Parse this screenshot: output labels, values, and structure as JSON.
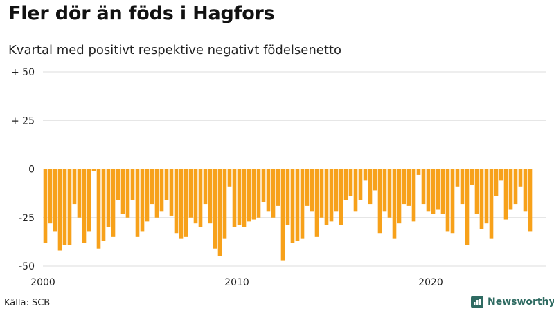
{
  "title": "Fler dör än föds i Hagfors",
  "subtitle": "Kvartal med positivt respektive negativt födelsenetto",
  "source": "Källa: SCB",
  "brand": "Newsworthy",
  "colors": {
    "bar": "#F7A11A",
    "grid": "#DDDDDD",
    "zero_line": "#333333",
    "brand": "#2F6B62"
  },
  "chart_data": {
    "type": "bar",
    "x_start_year": 2000,
    "periods_per_year": 4,
    "x_tick_labels": [
      "2000",
      "2010",
      "2020"
    ],
    "y_ticks": [
      {
        "value": 50,
        "label": "+ 50"
      },
      {
        "value": 25,
        "label": "+ 25"
      },
      {
        "value": 0,
        "label": "0"
      },
      {
        "value": -25,
        "label": "-25"
      },
      {
        "value": -50,
        "label": "-50"
      }
    ],
    "ylim": [
      -50,
      50
    ],
    "values": [
      -38,
      -28,
      -32,
      -42,
      -39,
      -39,
      -18,
      -25,
      -38,
      -32,
      -1,
      -41,
      -37,
      -30,
      -35,
      -16,
      -23,
      -25,
      -16,
      -35,
      -32,
      -27,
      -18,
      -25,
      -22,
      -16,
      -24,
      -33,
      -36,
      -35,
      -25,
      -28,
      -30,
      -18,
      -28,
      -41,
      -45,
      -36,
      -9,
      -30,
      -29,
      -30,
      -27,
      -26,
      -25,
      -17,
      -22,
      -25,
      -19,
      -47,
      -29,
      -38,
      -37,
      -36,
      -19,
      -22,
      -35,
      -25,
      -29,
      -27,
      -22,
      -29,
      -16,
      -14,
      -22,
      -16,
      -6,
      -18,
      -11,
      -33,
      -22,
      -25,
      -36,
      -28,
      -18,
      -19,
      -27,
      -3,
      -18,
      -22,
      -23,
      -21,
      -23,
      -32,
      -33,
      -9,
      -18,
      -39,
      -8,
      -23,
      -31,
      -28,
      -36,
      -14,
      -6,
      -26,
      -21,
      -18,
      -9,
      -22,
      -32
    ]
  }
}
